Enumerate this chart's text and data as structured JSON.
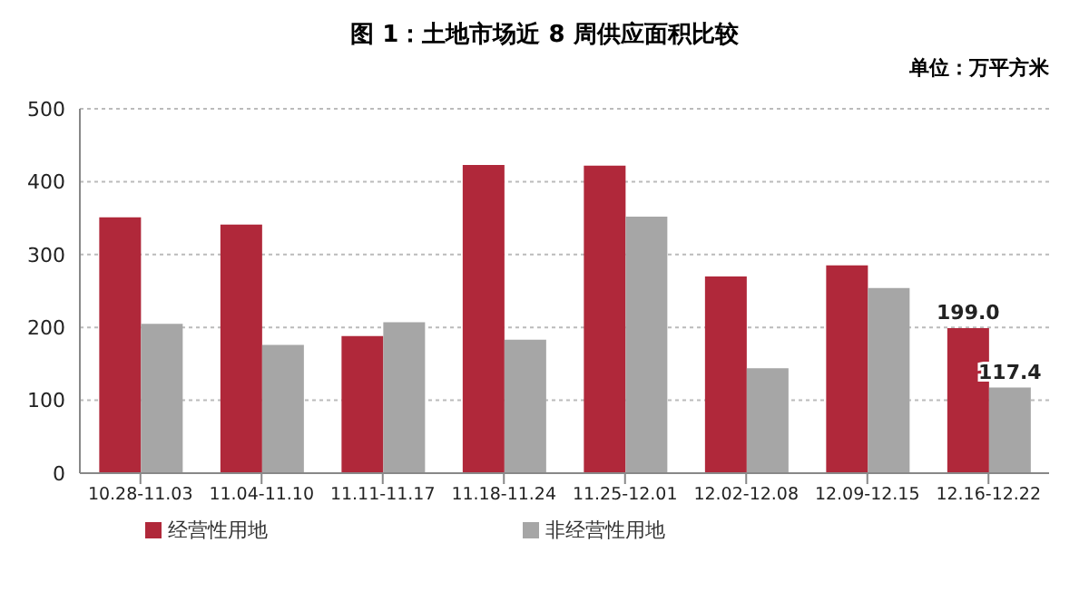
{
  "chart_data": {
    "type": "bar",
    "title": "图 1：土地市场近 8 周供应面积比较",
    "annotations": [
      "单位：万平方米"
    ],
    "categories": [
      "10.28-11.03",
      "11.04-11.10",
      "11.11-11.17",
      "11.18-11.24",
      "11.25-12.01",
      "12.02-12.08",
      "12.09-12.15",
      "12.16-12.22"
    ],
    "series": [
      {
        "name": "经营性用地",
        "color": "#b0283a",
        "values": [
          351,
          341,
          188,
          423,
          422,
          270,
          285,
          199.0
        ],
        "value_labels": [
          null,
          null,
          null,
          null,
          null,
          null,
          null,
          "199.0"
        ]
      },
      {
        "name": "非经营性用地",
        "color": "#a6a6a6",
        "values": [
          205,
          176,
          207,
          183,
          352,
          144,
          254,
          117.4
        ],
        "value_labels": [
          null,
          null,
          null,
          null,
          null,
          null,
          null,
          "117.4"
        ]
      }
    ],
    "ylim": [
      0,
      500
    ],
    "yticks": [
      0,
      100,
      200,
      300,
      400,
      500
    ],
    "grid": "y",
    "legend": "bottom"
  }
}
